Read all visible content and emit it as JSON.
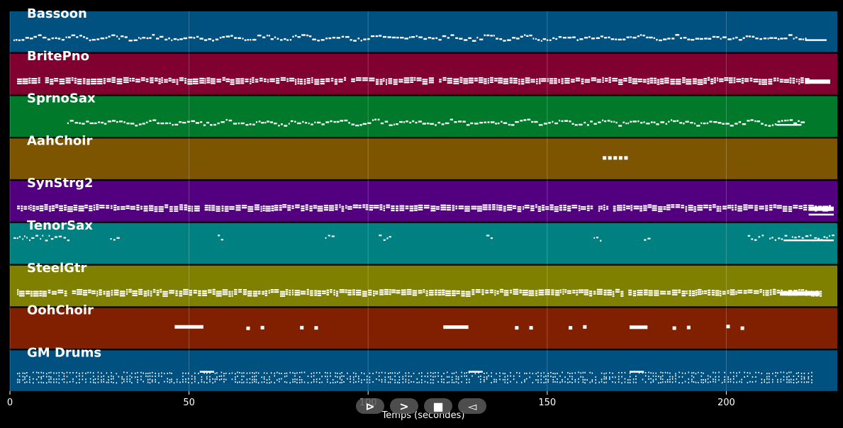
{
  "chart_data": {
    "type": "piano-roll",
    "title": "",
    "xlabel": "Temps (secondes)",
    "xlim": [
      0,
      231
    ],
    "x_ticks": [
      0,
      50,
      100,
      150,
      200
    ],
    "x_tick_labels": [
      "0",
      "50",
      "100",
      "150",
      "200"
    ],
    "grid": true,
    "tracks": [
      {
        "name": "Bassoon",
        "color": "#005080",
        "pattern": "dense-line",
        "start": 1,
        "end": 222,
        "tail": [
          222,
          228
        ]
      },
      {
        "name": "BritePno",
        "color": "#800030",
        "pattern": "dense-chords",
        "start": 2,
        "end": 222,
        "tail": [
          222,
          229
        ]
      },
      {
        "name": "SprnoSax",
        "color": "#007a2a",
        "pattern": "dense-line",
        "start": 16,
        "end": 221,
        "tail": [
          214,
          221
        ]
      },
      {
        "name": "AahChoir",
        "color": "#7d5500",
        "pattern": "notes",
        "notes": [
          [
            165.5,
            166.5
          ],
          [
            167,
            168
          ],
          [
            168.5,
            169.5
          ],
          [
            170,
            171
          ],
          [
            171.5,
            172.5
          ]
        ]
      },
      {
        "name": "SynStrg2",
        "color": "#520080",
        "pattern": "dense-chords",
        "start": 2,
        "end": 229,
        "tail": [
          223,
          230
        ]
      },
      {
        "name": "TenorSax",
        "color": "#008080",
        "pattern": "bursts",
        "bursts": [
          [
            1,
            16
          ],
          [
            28,
            31
          ],
          [
            58,
            60
          ],
          [
            88,
            90
          ],
          [
            103,
            106
          ],
          [
            133,
            134.5
          ],
          [
            163,
            165
          ],
          [
            177,
            179
          ],
          [
            206,
            210
          ],
          [
            212,
            230
          ]
        ]
      },
      {
        "name": "SteelGtr",
        "color": "#808000",
        "pattern": "dense-chords",
        "start": 2,
        "end": 226,
        "tail": [
          215,
          226
        ]
      },
      {
        "name": "OohChoir",
        "color": "#802000",
        "pattern": "notes",
        "notes": [
          [
            46,
            54
          ],
          [
            66,
            67
          ],
          [
            70,
            71
          ],
          [
            81,
            82
          ],
          [
            85,
            86
          ],
          [
            121,
            128
          ],
          [
            141,
            142
          ],
          [
            145,
            146
          ],
          [
            156,
            157
          ],
          [
            160,
            161
          ],
          [
            173,
            178
          ],
          [
            185,
            186
          ],
          [
            189,
            190
          ],
          [
            200,
            201
          ],
          [
            204,
            205
          ]
        ]
      },
      {
        "name": "GM Drums",
        "color": "#005080",
        "pattern": "drums",
        "start": 2,
        "end": 224
      }
    ]
  },
  "controls": [
    {
      "name": "play",
      "symbol": "⊳"
    },
    {
      "name": "forward",
      "symbol": ">"
    },
    {
      "name": "stop",
      "symbol": "■"
    },
    {
      "name": "back",
      "symbol": "◅"
    }
  ]
}
